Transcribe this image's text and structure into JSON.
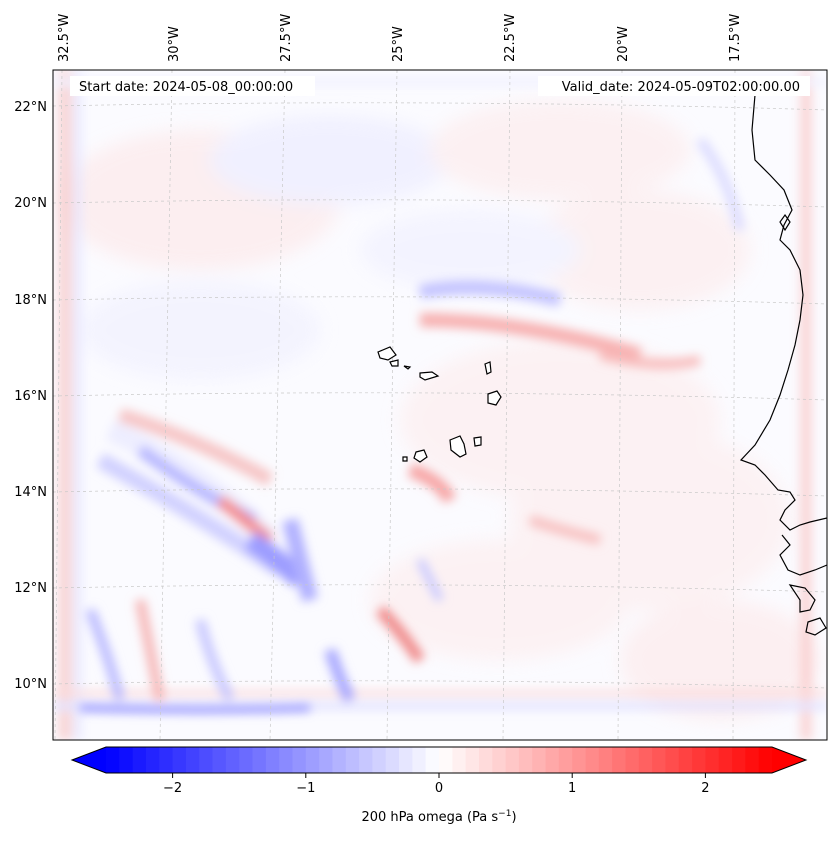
{
  "map": {
    "start_date": "Start date: 2024-05-08_00:00:00",
    "valid_date": "Valid_date: 2024-05-09T02:00:00.00",
    "longitude_labels": [
      "32.5°W",
      "30°W",
      "27.5°W",
      "25°W",
      "22.5°W",
      "20°W",
      "17.5°W"
    ],
    "latitude_labels": [
      "22°N",
      "20°N",
      "18°N",
      "16°N",
      "14°N",
      "12°N",
      "10°N"
    ],
    "coastline_color": "#000000",
    "gridline_color": "#c8c8c8"
  },
  "colorbar": {
    "label": "200 hPa omega (Pa s",
    "label_sup": "−1",
    "label_close": ")",
    "ticks": [
      "−2",
      "−1",
      "0",
      "1",
      "2"
    ],
    "tick_values": [
      -2,
      -1,
      0,
      1,
      2
    ],
    "range": [
      -2.5,
      2.5
    ],
    "colormap": "bwr",
    "low_color": "#0000ff",
    "mid_color": "#ffffff",
    "high_color": "#ff0000"
  }
}
